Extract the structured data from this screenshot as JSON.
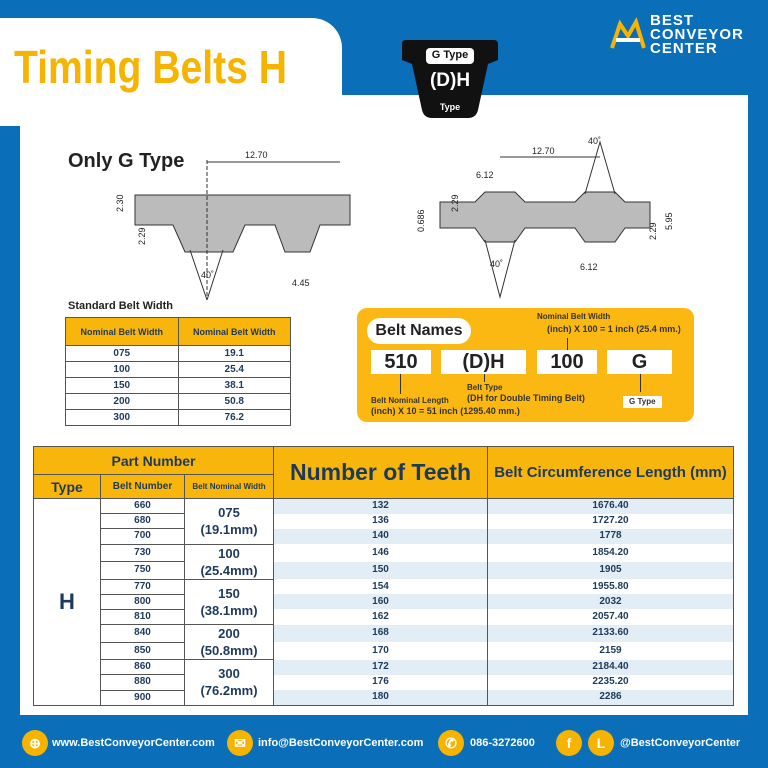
{
  "header": {
    "title": "Timing Belts H",
    "logo": {
      "line1": "BEST",
      "line2": "CONVEYOR",
      "line3": "CENTER"
    },
    "badge": {
      "top": "G Type",
      "middle": "(D)H",
      "bottom": "Type"
    }
  },
  "diagram_left": {
    "label": "Only G Type",
    "dims": [
      "12.70",
      "2.30",
      "2.29",
      "40˚",
      "4.45"
    ]
  },
  "diagram_right": {
    "dims": [
      "40˚",
      "12.70",
      "6.12",
      "2.29",
      "0.686",
      "40˚",
      "6.12",
      "2.29",
      "5.95"
    ]
  },
  "standard_width": {
    "title": "Standard Belt Width",
    "headers": [
      "Nominal Belt Width",
      "Nominal Belt Width"
    ],
    "rows": [
      [
        "075",
        "19.1"
      ],
      [
        "100",
        "25.4"
      ],
      [
        "150",
        "38.1"
      ],
      [
        "200",
        "50.8"
      ],
      [
        "300",
        "76.2"
      ]
    ]
  },
  "belt_names": {
    "title": "Belt Names",
    "parts": [
      "510",
      "(D)H",
      "100",
      "G"
    ],
    "width_label": "Nominal Belt Width",
    "width_desc": "(inch) X 100 = 1 inch (25.4 mm.)",
    "length_label": "Belt Nominal Length",
    "length_desc": "(inch) X 10 = 51 inch (1295.40 mm.)",
    "type_label": "Belt Type",
    "type_desc": "(DH for Double Timing Belt)",
    "g_label": "G Type"
  },
  "main_table": {
    "part_number": "Part Number",
    "type_h": "Type",
    "belt_number_h": "Belt Number",
    "width_h": "Belt Nominal Width",
    "teeth_h": "Number of Teeth",
    "circ_h": "Belt Circumference Length (mm)",
    "type": "H",
    "widths": [
      [
        "075",
        "(19.1mm)"
      ],
      [
        "100",
        "(25.4mm)"
      ],
      [
        "150",
        "(38.1mm)"
      ],
      [
        "200",
        "(50.8mm)"
      ],
      [
        "300",
        "(76.2mm)"
      ]
    ],
    "rows": [
      [
        "660",
        "132",
        "1676.40"
      ],
      [
        "680",
        "136",
        "1727.20"
      ],
      [
        "700",
        "140",
        "1778"
      ],
      [
        "730",
        "146",
        "1854.20"
      ],
      [
        "750",
        "150",
        "1905"
      ],
      [
        "770",
        "154",
        "1955.80"
      ],
      [
        "800",
        "160",
        "2032"
      ],
      [
        "810",
        "162",
        "2057.40"
      ],
      [
        "840",
        "168",
        "2133.60"
      ],
      [
        "850",
        "170",
        "2159"
      ],
      [
        "860",
        "172",
        "2184.40"
      ],
      [
        "880",
        "176",
        "2235.20"
      ],
      [
        "900",
        "180",
        "2286"
      ]
    ]
  },
  "footer": {
    "web": "www.BestConveyorCenter.com",
    "email": "info@BestConveyorCenter.com",
    "phone": "086-3272600",
    "social": "@BestConveyorCenter",
    "fb": "f",
    "line": "L"
  },
  "colors": {
    "blue": "#0a6fb8",
    "yellow": "#f6b400",
    "navy": "#1d3a5c"
  }
}
